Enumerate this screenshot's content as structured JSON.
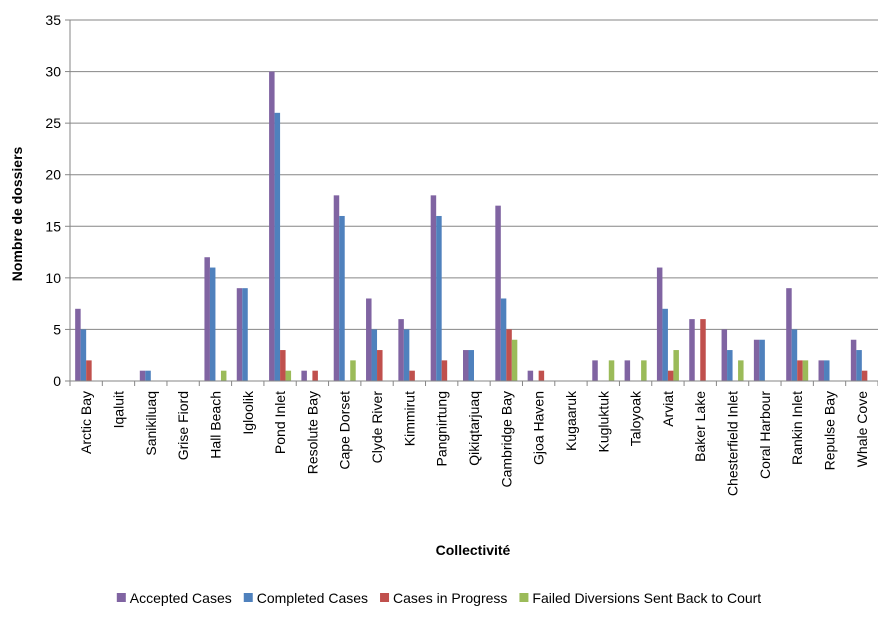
{
  "chart_data": {
    "type": "bar",
    "title": "",
    "xlabel": "Collectivité",
    "ylabel": "Nombre de dossiers",
    "ylim": [
      0,
      35
    ],
    "yticks": [
      0,
      5,
      10,
      15,
      20,
      25,
      30,
      35
    ],
    "grid": "horizontal",
    "legend_position": "bottom",
    "categories": [
      "Arctic Bay",
      "Iqaluit",
      "Sanikiluaq",
      "Grise Fiord",
      "Hall Beach",
      "Igloolik",
      "Pond Inlet",
      "Resolute Bay",
      "Cape Dorset",
      "Clyde River",
      "Kimmirut",
      "Pangnirtung",
      "Qikiqtarjuaq",
      "Cambridge Bay",
      "Gjoa Haven",
      "Kugaaruk",
      "Kugluktuk",
      "Taloyoak",
      "Arviat",
      "Baker Lake",
      "Chesterfield Inlet",
      "Coral Harbour",
      "Rankin Inlet",
      "Repulse Bay",
      "Whale Cove"
    ],
    "series": [
      {
        "name": "Accepted Cases",
        "color": "#8064A2",
        "values": [
          7,
          0,
          1,
          0,
          12,
          9,
          30,
          1,
          18,
          8,
          6,
          18,
          3,
          17,
          1,
          0,
          2,
          2,
          11,
          6,
          5,
          4,
          9,
          2,
          4
        ]
      },
      {
        "name": "Completed Cases",
        "color": "#4F81BD",
        "values": [
          5,
          0,
          1,
          0,
          11,
          9,
          26,
          0,
          16,
          5,
          5,
          16,
          3,
          8,
          0,
          0,
          0,
          0,
          7,
          0,
          3,
          4,
          5,
          2,
          3
        ]
      },
      {
        "name": "Cases in Progress",
        "color": "#C0504D",
        "values": [
          2,
          0,
          0,
          0,
          0,
          0,
          3,
          1,
          0,
          3,
          1,
          2,
          0,
          5,
          1,
          0,
          0,
          0,
          1,
          6,
          0,
          0,
          2,
          0,
          1
        ]
      },
      {
        "name": "Failed Diversions Sent Back to Court",
        "color": "#9BBB59",
        "values": [
          0,
          0,
          0,
          0,
          1,
          0,
          1,
          0,
          2,
          0,
          0,
          0,
          0,
          4,
          0,
          0,
          2,
          2,
          3,
          0,
          2,
          0,
          2,
          0,
          0
        ]
      }
    ]
  },
  "colors": {
    "gridline": "#868686",
    "axis": "#868686",
    "background": "#ffffff"
  }
}
